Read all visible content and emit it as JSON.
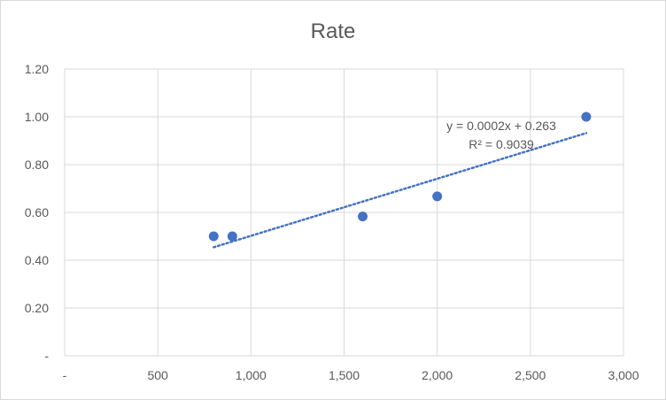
{
  "chart_data": {
    "type": "scatter",
    "title": "Rate",
    "xlabel": "",
    "ylabel": "",
    "xlim": [
      0,
      3000
    ],
    "ylim": [
      0,
      1.2
    ],
    "grid": true,
    "x_ticks": [
      0,
      500,
      1000,
      1500,
      2000,
      2500,
      3000
    ],
    "x_tick_labels": [
      "-",
      "500",
      "1,000",
      "1,500",
      "2,000",
      "2,500",
      "3,000"
    ],
    "y_ticks": [
      0,
      0.2,
      0.4,
      0.6,
      0.8,
      1.0,
      1.2
    ],
    "y_tick_labels": [
      "-",
      "0.20",
      "0.40",
      "0.60",
      "0.80",
      "1.00",
      "1.20"
    ],
    "series": [
      {
        "name": "Rate",
        "color": "#4472c4",
        "x": [
          800,
          900,
          1600,
          2000,
          2800
        ],
        "y": [
          0.5,
          0.5,
          0.583,
          0.667,
          1.0
        ]
      }
    ],
    "trendline": {
      "type": "linear",
      "color": "#4472c4",
      "x_range": [
        800,
        2800
      ],
      "equation_label": "y = 0.0002x + 0.263",
      "r2_label": "R² = 0.9039"
    }
  }
}
